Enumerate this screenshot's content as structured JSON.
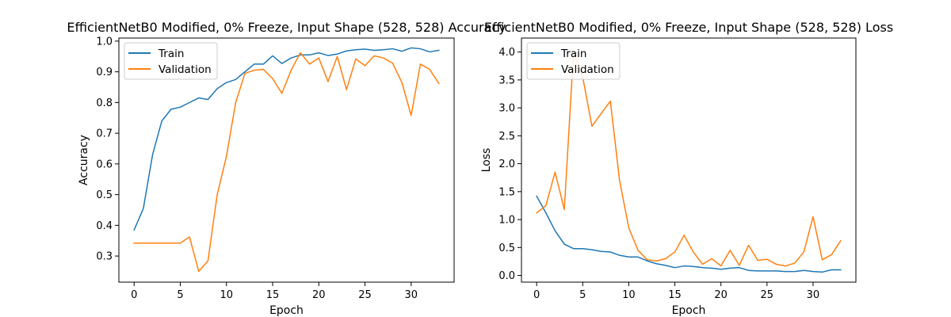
{
  "colors": {
    "train": "#1f77b4",
    "validation": "#ff7f0e"
  },
  "chart_data": [
    {
      "type": "line",
      "title": "EfficientNetB0 Modified, 0% Freeze, Input Shape (528, 528) Accuracy",
      "xlabel": "Epoch",
      "ylabel": "Accuracy",
      "xlim": [
        -1.65,
        34.65
      ],
      "ylim": [
        0.215,
        1.01
      ],
      "xticks": [
        0,
        5,
        10,
        15,
        20,
        25,
        30
      ],
      "xtick_labels": [
        "0",
        "5",
        "10",
        "15",
        "20",
        "25",
        "30"
      ],
      "yticks": [
        0.3,
        0.4,
        0.5,
        0.6,
        0.7,
        0.8,
        0.9,
        1.0
      ],
      "ytick_labels": [
        "0.3",
        "0.4",
        "0.5",
        "0.6",
        "0.7",
        "0.8",
        "0.9",
        "1.0"
      ],
      "legend_position": "upper-left",
      "grid": false,
      "x": [
        0,
        1,
        2,
        3,
        4,
        5,
        6,
        7,
        8,
        9,
        10,
        11,
        12,
        13,
        14,
        15,
        16,
        17,
        18,
        19,
        20,
        21,
        22,
        23,
        24,
        25,
        26,
        27,
        28,
        29,
        30,
        31,
        32,
        33
      ],
      "series": [
        {
          "name": "Train",
          "color": "train",
          "values": [
            0.385,
            0.455,
            0.63,
            0.74,
            0.778,
            0.785,
            0.8,
            0.815,
            0.81,
            0.845,
            0.865,
            0.875,
            0.9,
            0.925,
            0.925,
            0.952,
            0.927,
            0.945,
            0.955,
            0.955,
            0.962,
            0.953,
            0.958,
            0.968,
            0.972,
            0.974,
            0.97,
            0.972,
            0.975,
            0.967,
            0.978,
            0.975,
            0.965,
            0.97
          ]
        },
        {
          "name": "Validation",
          "color": "validation",
          "values": [
            0.342,
            0.342,
            0.342,
            0.342,
            0.342,
            0.342,
            0.362,
            0.25,
            0.285,
            0.5,
            0.625,
            0.8,
            0.895,
            0.905,
            0.908,
            0.878,
            0.83,
            0.905,
            0.962,
            0.925,
            0.945,
            0.868,
            0.95,
            0.842,
            0.942,
            0.92,
            0.952,
            0.945,
            0.928,
            0.865,
            0.758,
            0.925,
            0.908,
            0.862
          ]
        }
      ]
    },
    {
      "type": "line",
      "title": "EfficientNetB0 Modified, 0% Freeze, Input Shape (528, 528) Loss",
      "xlabel": "Epoch",
      "ylabel": "Loss",
      "xlim": [
        -1.65,
        34.65
      ],
      "ylim": [
        -0.12,
        4.25
      ],
      "xticks": [
        0,
        5,
        10,
        15,
        20,
        25,
        30
      ],
      "xtick_labels": [
        "0",
        "5",
        "10",
        "15",
        "20",
        "25",
        "30"
      ],
      "yticks": [
        0.0,
        0.5,
        1.0,
        1.5,
        2.0,
        2.5,
        3.0,
        3.5,
        4.0
      ],
      "ytick_labels": [
        "0.0",
        "0.5",
        "1.0",
        "1.5",
        "2.0",
        "2.5",
        "3.0",
        "3.5",
        "4.0"
      ],
      "legend_position": "upper-left",
      "grid": false,
      "x": [
        0,
        1,
        2,
        3,
        4,
        5,
        6,
        7,
        8,
        9,
        10,
        11,
        12,
        13,
        14,
        15,
        16,
        17,
        18,
        19,
        20,
        21,
        22,
        23,
        24,
        25,
        26,
        27,
        28,
        29,
        30,
        31,
        32,
        33
      ],
      "series": [
        {
          "name": "Train",
          "color": "train",
          "values": [
            1.42,
            1.12,
            0.8,
            0.56,
            0.48,
            0.48,
            0.46,
            0.43,
            0.42,
            0.36,
            0.33,
            0.33,
            0.26,
            0.21,
            0.18,
            0.14,
            0.17,
            0.16,
            0.14,
            0.13,
            0.11,
            0.13,
            0.14,
            0.09,
            0.08,
            0.08,
            0.08,
            0.07,
            0.07,
            0.09,
            0.07,
            0.06,
            0.1,
            0.1
          ]
        },
        {
          "name": "Validation",
          "color": "validation",
          "values": [
            1.12,
            1.25,
            1.85,
            1.18,
            4.0,
            3.55,
            2.67,
            2.9,
            3.12,
            1.7,
            0.85,
            0.45,
            0.28,
            0.26,
            0.3,
            0.42,
            0.72,
            0.42,
            0.2,
            0.3,
            0.17,
            0.45,
            0.18,
            0.54,
            0.27,
            0.29,
            0.2,
            0.17,
            0.22,
            0.42,
            1.05,
            0.28,
            0.37,
            0.62
          ]
        }
      ]
    }
  ]
}
